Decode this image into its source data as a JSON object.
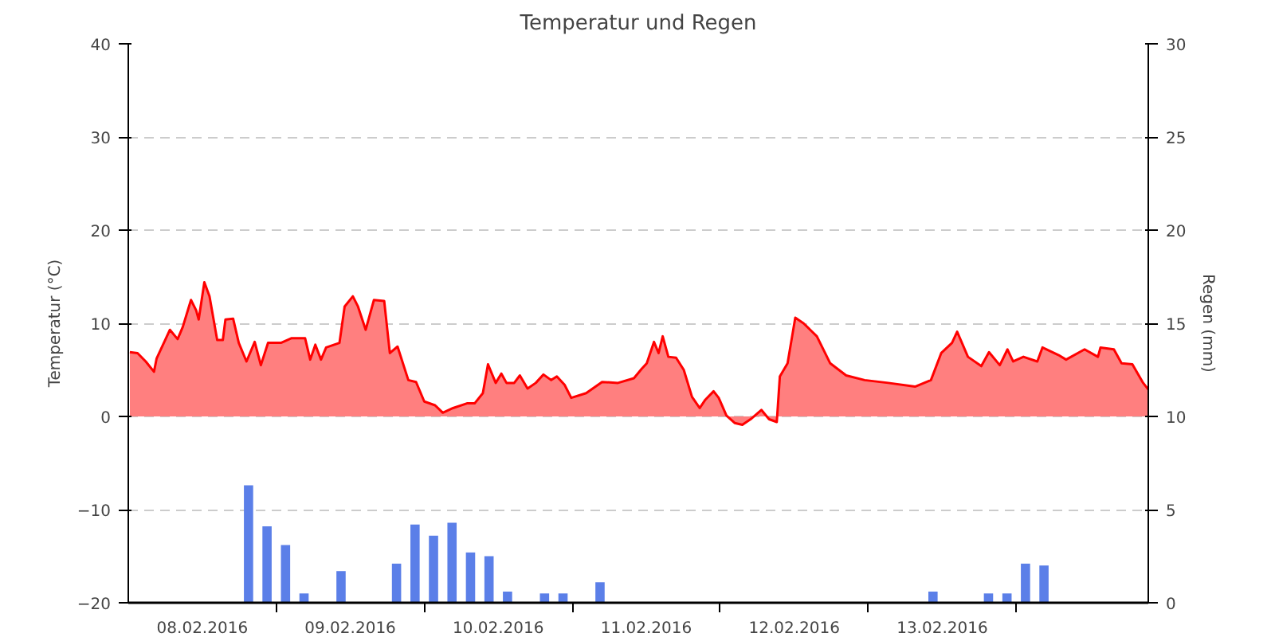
{
  "chart_data": {
    "type": "area",
    "title": "Temperatur und Regen",
    "ylabel": "Temperatur (°C)",
    "y2label": "Regen (mm)",
    "xlim": [
      "2016-02-08T00:00",
      "2016-02-14T21:25"
    ],
    "xticks": [
      {
        "value": "2016-02-08T12:00",
        "label": "08.02.2016"
      },
      {
        "value": "2016-02-09T00:00",
        "label": null
      },
      {
        "value": "2016-02-09T12:00",
        "label": "09.02.2016"
      },
      {
        "value": "2016-02-10T00:00",
        "label": null
      },
      {
        "value": "2016-02-10T12:00",
        "label": "10.02.2016"
      },
      {
        "value": "2016-02-11T00:00",
        "label": null
      },
      {
        "value": "2016-02-11T12:00",
        "label": "11.02.2016"
      },
      {
        "value": "2016-02-12T00:00",
        "label": null
      },
      {
        "value": "2016-02-12T12:00",
        "label": "12.02.2016"
      },
      {
        "value": "2016-02-13T00:00",
        "label": null
      },
      {
        "value": "2016-02-13T12:00",
        "label": "13.02.2016"
      },
      {
        "value": "2016-02-14T00:00",
        "label": null
      }
    ],
    "ylim": [
      -20,
      40
    ],
    "yticks": [
      -20,
      -10,
      0,
      10,
      20,
      30,
      40
    ],
    "y2lim": [
      0,
      30
    ],
    "y2ticks": [
      0,
      5,
      10,
      15,
      20,
      25,
      30
    ],
    "grid": "y",
    "series": [
      {
        "color": "#ff0000",
        "x": [
          "2016-02-08T00:15",
          "2016-02-08T01:30",
          "2016-02-08T02:50",
          "2016-02-08T04:10",
          "2016-02-08T04:35",
          "2016-02-08T06:45",
          "2016-02-08T08:00",
          "2016-02-08T08:50",
          "2016-02-08T10:10",
          "2016-02-08T11:00",
          "2016-02-08T11:25",
          "2016-02-08T12:20",
          "2016-02-08T13:10",
          "2016-02-08T14:25",
          "2016-02-08T15:20",
          "2016-02-08T15:45",
          "2016-02-08T17:00",
          "2016-02-08T17:55",
          "2016-02-08T19:10",
          "2016-02-08T20:30",
          "2016-02-08T21:30",
          "2016-02-08T22:40",
          "2016-02-09T00:45",
          "2016-02-09T02:30",
          "2016-02-09T04:40",
          "2016-02-09T05:30",
          "2016-02-09T06:20",
          "2016-02-09T07:15",
          "2016-02-09T08:05",
          "2016-02-09T10:15",
          "2016-02-09T11:05",
          "2016-02-09T12:25",
          "2016-02-09T13:15",
          "2016-02-09T14:30",
          "2016-02-09T15:50",
          "2016-02-09T17:30",
          "2016-02-09T18:25",
          "2016-02-09T19:40",
          "2016-02-09T21:25",
          "2016-02-09T22:40",
          "2016-02-10T00:00",
          "2016-02-10T01:45",
          "2016-02-10T03:00",
          "2016-02-10T04:40",
          "2016-02-10T06:55",
          "2016-02-10T08:10",
          "2016-02-10T09:30",
          "2016-02-10T10:20",
          "2016-02-10T11:35",
          "2016-02-10T12:30",
          "2016-02-10T13:20",
          "2016-02-10T14:35",
          "2016-02-10T15:30",
          "2016-02-10T16:45",
          "2016-02-10T18:05",
          "2016-02-10T19:20",
          "2016-02-10T20:35",
          "2016-02-10T21:30",
          "2016-02-10T22:45",
          "2016-02-10T23:50",
          "2016-02-11T02:15",
          "2016-02-11T04:50",
          "2016-02-11T07:25",
          "2016-02-11T10:00",
          "2016-02-11T11:15",
          "2016-02-11T12:05",
          "2016-02-11T13:15",
          "2016-02-11T14:00",
          "2016-02-11T14:40",
          "2016-02-11T15:35",
          "2016-02-11T16:50",
          "2016-02-11T18:05",
          "2016-02-11T19:25",
          "2016-02-11T20:40",
          "2016-02-11T21:35",
          "2016-02-11T22:55",
          "2016-02-11T23:45",
          "2016-02-12T01:00",
          "2016-02-12T02:20",
          "2016-02-12T03:35",
          "2016-02-12T04:55",
          "2016-02-12T06:40",
          "2016-02-12T07:55",
          "2016-02-12T09:10",
          "2016-02-12T09:40",
          "2016-02-12T10:55",
          "2016-02-12T12:10",
          "2016-02-12T13:30",
          "2016-02-12T15:40",
          "2016-02-12T17:50",
          "2016-02-12T20:25",
          "2016-02-12T23:25",
          "2016-02-13T03:15",
          "2016-02-13T07:35",
          "2016-02-13T10:10",
          "2016-02-13T11:50",
          "2016-02-13T13:35",
          "2016-02-13T14:25",
          "2016-02-13T16:10",
          "2016-02-13T18:20",
          "2016-02-13T19:35",
          "2016-02-13T21:20",
          "2016-02-13T22:35",
          "2016-02-13T23:30",
          "2016-02-14T01:10",
          "2016-02-14T03:25",
          "2016-02-14T04:15",
          "2016-02-14T06:50",
          "2016-02-14T08:05",
          "2016-02-14T11:05",
          "2016-02-14T13:15",
          "2016-02-14T13:40",
          "2016-02-14T15:50",
          "2016-02-14T17:05",
          "2016-02-14T18:50",
          "2016-02-14T20:35",
          "2016-02-14T21:25"
        ],
        "values": [
          6.9,
          6.8,
          5.9,
          4.8,
          6.2,
          9.3,
          8.3,
          9.6,
          12.5,
          11.4,
          10.4,
          14.4,
          12.9,
          8.2,
          8.2,
          10.4,
          10.5,
          7.9,
          5.9,
          8.0,
          5.5,
          7.9,
          7.9,
          8.4,
          8.4,
          6.1,
          7.7,
          6.1,
          7.4,
          7.9,
          11.8,
          12.9,
          11.8,
          9.3,
          12.5,
          12.4,
          6.8,
          7.5,
          3.9,
          3.7,
          1.6,
          1.2,
          0.4,
          0.9,
          1.4,
          1.4,
          2.5,
          5.6,
          3.6,
          4.6,
          3.6,
          3.6,
          4.4,
          3.0,
          3.6,
          4.5,
          3.9,
          4.3,
          3.4,
          2.0,
          2.5,
          3.7,
          3.6,
          4.1,
          5.1,
          5.7,
          8.0,
          6.8,
          8.6,
          6.4,
          6.3,
          5.0,
          2.1,
          0.9,
          1.8,
          2.7,
          2.0,
          0.1,
          -0.7,
          -0.9,
          -0.3,
          0.7,
          -0.3,
          -0.6,
          4.3,
          5.7,
          10.6,
          10.0,
          8.6,
          5.7,
          4.4,
          3.9,
          3.6,
          3.2,
          3.9,
          6.8,
          7.9,
          9.1,
          6.4,
          5.4,
          6.9,
          5.5,
          7.2,
          5.9,
          6.4,
          5.9,
          7.4,
          6.6,
          6.1,
          7.2,
          6.4,
          7.4,
          7.2,
          5.7,
          5.6,
          3.6,
          2.9
        ]
      },
      {
        "type": "bar",
        "axis": "y2",
        "color": "#5b7fe8",
        "x": [
          "2016-02-08T19:30",
          "2016-02-08T22:30",
          "2016-02-09T01:30",
          "2016-02-09T04:30",
          "2016-02-09T10:30",
          "2016-02-09T19:30",
          "2016-02-09T22:30",
          "2016-02-10T01:30",
          "2016-02-10T04:30",
          "2016-02-10T07:30",
          "2016-02-10T10:30",
          "2016-02-10T13:30",
          "2016-02-10T19:30",
          "2016-02-10T22:30",
          "2016-02-11T04:30",
          "2016-02-13T10:30",
          "2016-02-13T19:30",
          "2016-02-13T22:30",
          "2016-02-14T01:30",
          "2016-02-14T04:30"
        ],
        "values": [
          6.3,
          4.1,
          3.1,
          0.5,
          1.7,
          2.1,
          4.2,
          3.6,
          4.3,
          2.7,
          2.5,
          0.6,
          0.5,
          0.5,
          1.1,
          0.6,
          0.5,
          0.5,
          2.1,
          2.0
        ]
      }
    ]
  }
}
